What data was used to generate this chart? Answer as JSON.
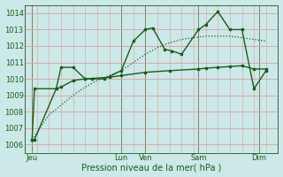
{
  "bg_color": "#cce8e8",
  "grid_color": "#d8a0a0",
  "line_color": "#1a5c1a",
  "xlabel": "Pression niveau de la mer( hPa )",
  "ylim": [
    1005.5,
    1014.5
  ],
  "yticks": [
    1006,
    1007,
    1008,
    1009,
    1010,
    1011,
    1012,
    1013,
    1014
  ],
  "xlim": [
    0,
    10.5
  ],
  "day_labels": [
    "Jeu",
    "Lun",
    "Ven",
    "Sam",
    "Dim"
  ],
  "day_positions": [
    0.3,
    4.0,
    5.0,
    7.2,
    9.7
  ],
  "dotted_x": [
    0.3,
    1.0,
    1.5,
    2.0,
    2.5,
    3.0,
    3.5,
    4.0,
    4.5,
    5.0,
    5.5,
    6.0,
    6.5,
    7.0,
    7.5,
    8.0,
    8.5,
    9.0,
    9.5,
    10.0
  ],
  "dotted_y": [
    1006.3,
    1007.8,
    1008.4,
    1009.0,
    1009.5,
    1009.9,
    1010.2,
    1010.5,
    1011.0,
    1011.5,
    1011.9,
    1012.2,
    1012.4,
    1012.5,
    1012.6,
    1012.6,
    1012.6,
    1012.5,
    1012.4,
    1012.3
  ],
  "line_solid1_x": [
    0.3,
    0.4,
    1.3,
    1.5,
    2.0,
    2.5,
    2.8,
    3.3,
    4.0,
    4.5,
    5.0,
    5.3,
    5.8,
    6.1,
    6.5,
    7.2,
    7.5,
    8.0,
    8.5,
    9.0,
    9.5,
    10.0
  ],
  "line_solid1_y": [
    1006.3,
    1006.3,
    1009.4,
    1010.7,
    1010.7,
    1010.0,
    1010.0,
    1010.0,
    1010.5,
    1012.3,
    1013.0,
    1013.1,
    1011.8,
    1011.7,
    1011.5,
    1013.0,
    1013.3,
    1014.1,
    1013.0,
    1013.0,
    1009.4,
    1010.5
  ],
  "line_solid2_x": [
    0.3,
    0.4,
    1.3,
    1.5,
    2.0,
    2.5,
    3.5,
    4.0,
    5.0,
    6.0,
    7.2,
    7.5,
    8.0,
    8.5,
    9.0,
    9.5,
    10.0
  ],
  "line_solid2_y": [
    1006.3,
    1009.4,
    1009.4,
    1009.5,
    1009.9,
    1010.0,
    1010.1,
    1010.2,
    1010.4,
    1010.5,
    1010.6,
    1010.65,
    1010.7,
    1010.75,
    1010.8,
    1010.6,
    1010.6
  ]
}
